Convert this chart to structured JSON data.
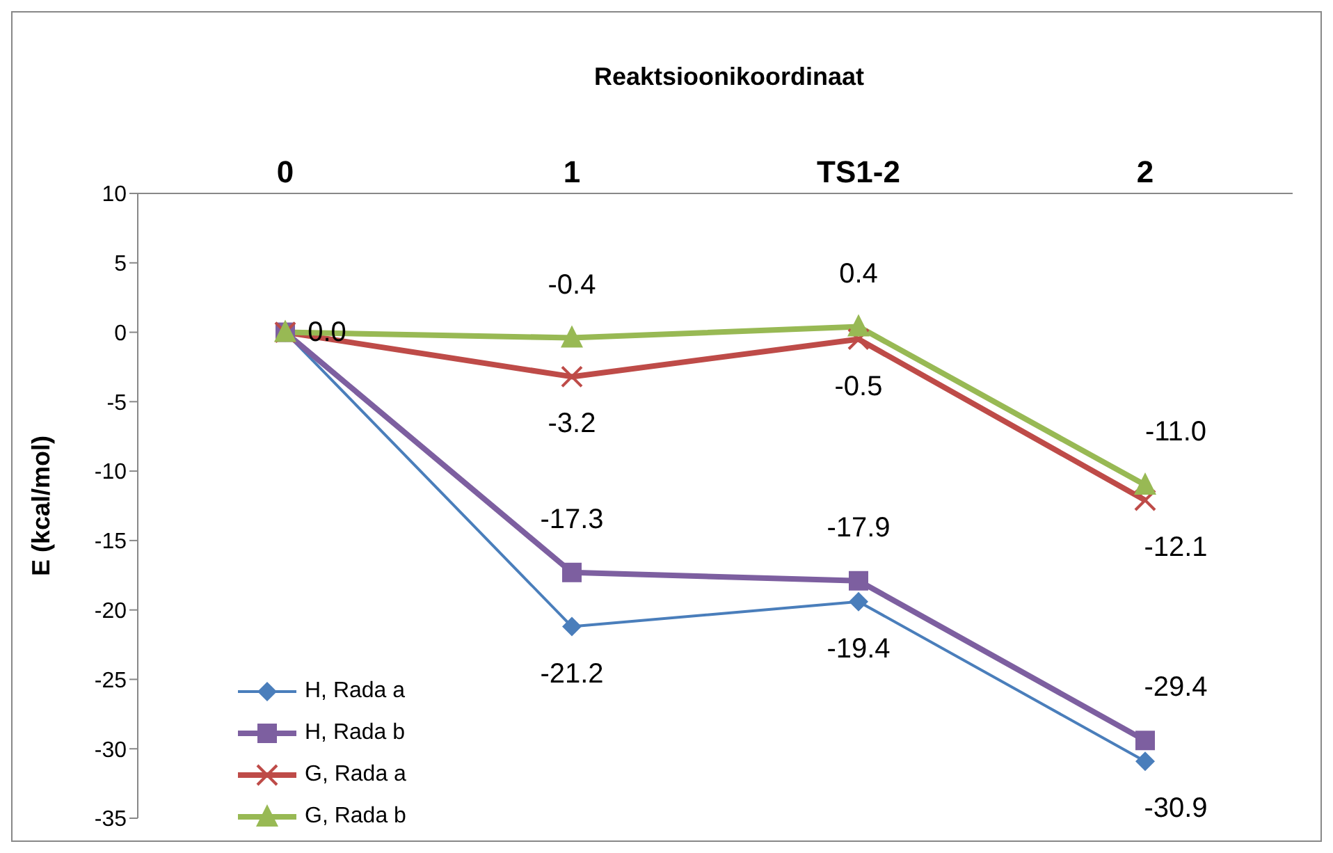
{
  "chart_data": {
    "type": "line",
    "xlabel": "Reaktsioonikoordinaat",
    "ylabel": "E (kcal/mol)",
    "categories": [
      "0",
      "1",
      "TS1-2",
      "2"
    ],
    "ylim": [
      -35,
      10
    ],
    "yticks": [
      -35,
      -30,
      -25,
      -20,
      -15,
      -10,
      -5,
      0,
      5,
      10
    ],
    "legend": "bottom left",
    "line_style": "solid",
    "series": [
      {
        "name": "H, Rada a",
        "color": "#4a7ebb",
        "marker": "diamond",
        "values": [
          0,
          -21.2,
          -19.4,
          -30.9
        ],
        "value_labels": [
          null,
          "-21.2",
          "-19.4",
          "-30.9"
        ]
      },
      {
        "name": "H, Rada b",
        "color": "#7d5fa0",
        "marker": "square",
        "values": [
          0,
          -17.3,
          -17.9,
          -29.4
        ],
        "value_labels": [
          null,
          "-17.3",
          "-17.9",
          "-29.4"
        ]
      },
      {
        "name": "G, Rada a",
        "color": "#be4b48",
        "marker": "cross",
        "values": [
          0,
          -3.2,
          -0.5,
          -12.1
        ],
        "value_labels": [
          null,
          "-3.2",
          "-0.5",
          "-12.1"
        ]
      },
      {
        "name": "G, Rada b",
        "color": "#98b954",
        "marker": "triangle",
        "values": [
          0,
          -0.4,
          0.4,
          -11.0
        ],
        "value_labels": [
          "0.0",
          "-0.4",
          "0.4",
          "-11.0"
        ]
      }
    ]
  }
}
